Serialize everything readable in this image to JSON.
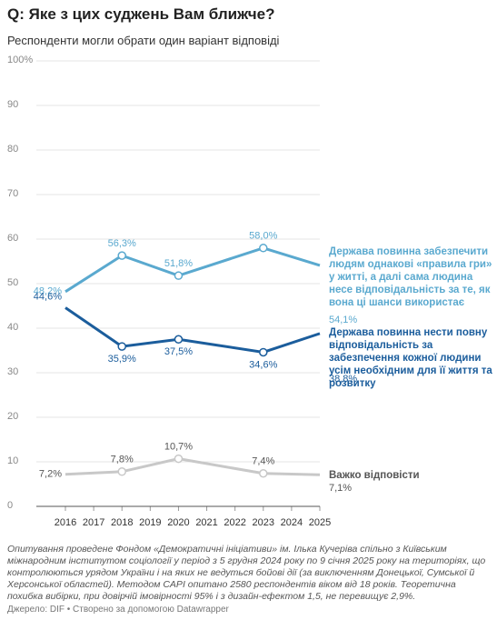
{
  "chart_data": {
    "type": "line",
    "title": "Q: Яке з цих суджень Вам ближче?",
    "subtitle": "Респонденти могли обрати один варіант відповіді",
    "x": [
      2016,
      2018,
      2020,
      2023,
      2025
    ],
    "xlim": [
      2016,
      2025
    ],
    "xticks": [
      2016,
      2017,
      2018,
      2019,
      2020,
      2021,
      2022,
      2023,
      2024,
      2025
    ],
    "ylim": [
      0,
      100
    ],
    "yticks": [
      0,
      10,
      20,
      30,
      40,
      50,
      60,
      70,
      80,
      90,
      {
        "value": 100,
        "label": "100%"
      }
    ],
    "grid": true,
    "series": [
      {
        "name": "Держава повинна забезпечити людям однакові «правила гри» у житті, а далі сама людина несе відповідальність за те, як вона ці шанси використає",
        "color": "#5aa9cf",
        "values": [
          48.2,
          56.3,
          51.8,
          58.0,
          54.1
        ],
        "value_labels": [
          "48,2%",
          "56,3%",
          "51,8%",
          "58,0%",
          "54,1%"
        ]
      },
      {
        "name": "Держава повинна нести повну відповідальність за забезпечення кожної людини усім необхідним для її життя та розвитку",
        "color": "#1b5d9c",
        "values": [
          44.6,
          35.9,
          37.5,
          34.6,
          38.8
        ],
        "value_labels": [
          "44,6%",
          "35,9%",
          "37,5%",
          "34,6%",
          "38,8%"
        ]
      },
      {
        "name": "Важко відповісти",
        "color": "#c8c8c8",
        "values": [
          7.2,
          7.8,
          10.7,
          7.4,
          7.1
        ],
        "value_labels": [
          "7,2%",
          "7,8%",
          "10,7%",
          "7,4%",
          "7,1%"
        ]
      }
    ],
    "notes": "Опитування проведене Фондом «Демократичні ініціативи» ім. Ілька Кучеріва спільно з Київським міжнародним інститутом соціології у період з 5 грудня 2024 року по 9 січня 2025 року на територіях, що контролюються урядом України і на яких не ведуться бойові дії (за виключенням Донецької, Сумської й Херсонської областей). Методом CAPI опитано 2580 респондентів віком від 18 років. Теоретична похибка вибірки, при довірчій імовірності 95% і з дизайн-ефектом 1,5, не перевищує 2,9%.",
    "source": "Джерело: DIF • Створено за допомогою Datawrapper"
  }
}
